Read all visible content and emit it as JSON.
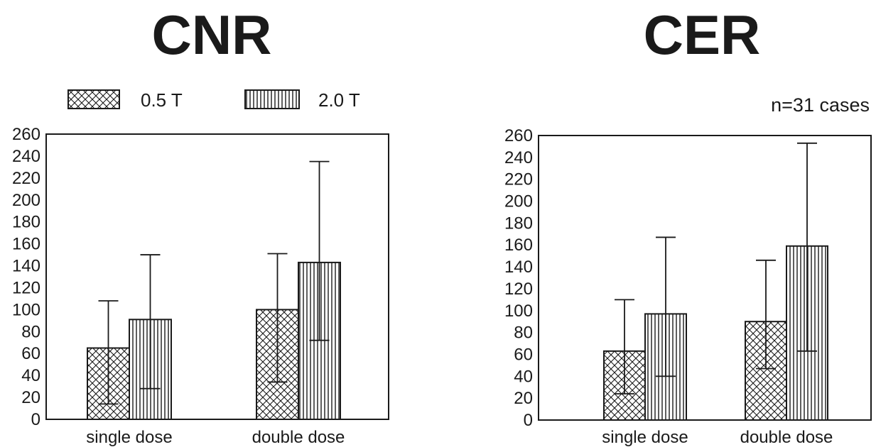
{
  "legend": {
    "items": [
      {
        "label": "0.5 T",
        "pattern": "crosshatch"
      },
      {
        "label": "2.0 T",
        "pattern": "vertical-stripes"
      }
    ]
  },
  "colors": {
    "ink": "#1a1a1a",
    "background": "#ffffff"
  },
  "chart_data": [
    {
      "type": "bar",
      "title": "CNR",
      "categories": [
        "single dose",
        "double dose"
      ],
      "series": [
        {
          "name": "0.5 T",
          "values": [
            65,
            100
          ],
          "error_low": [
            14,
            34
          ],
          "error_high": [
            108,
            151
          ]
        },
        {
          "name": "2.0 T",
          "values": [
            91,
            143
          ],
          "error_low": [
            28,
            72
          ],
          "error_high": [
            150,
            235
          ]
        }
      ],
      "yticks": [
        0,
        20,
        40,
        60,
        80,
        100,
        120,
        140,
        160,
        180,
        200,
        220,
        240,
        260
      ],
      "ylim": [
        0,
        260
      ],
      "xlabel": "",
      "ylabel": "",
      "grid": false,
      "legend_position": "top"
    },
    {
      "type": "bar",
      "title": "CER",
      "annotation": "n=31 cases",
      "categories": [
        "single dose",
        "double dose"
      ],
      "series": [
        {
          "name": "0.5 T",
          "values": [
            63,
            90
          ],
          "error_low": [
            24,
            47
          ],
          "error_high": [
            110,
            146
          ]
        },
        {
          "name": "2.0 T",
          "values": [
            97,
            159
          ],
          "error_low": [
            40,
            63
          ],
          "error_high": [
            167,
            253
          ]
        }
      ],
      "yticks": [
        0,
        20,
        40,
        60,
        80,
        100,
        120,
        140,
        160,
        180,
        200,
        220,
        240,
        260
      ],
      "ylim": [
        0,
        260
      ],
      "xlabel": "",
      "ylabel": "",
      "grid": false
    }
  ]
}
